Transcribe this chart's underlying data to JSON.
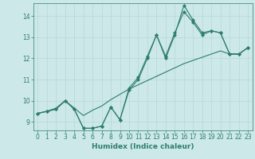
{
  "xlabel": "Humidex (Indice chaleur)",
  "x": [
    0,
    1,
    2,
    3,
    4,
    5,
    6,
    7,
    8,
    9,
    10,
    11,
    12,
    13,
    14,
    15,
    16,
    17,
    18,
    19,
    20,
    21,
    22,
    23
  ],
  "line1": [
    9.4,
    9.5,
    9.6,
    10.0,
    9.6,
    8.7,
    8.7,
    8.8,
    9.7,
    9.1,
    10.5,
    11.0,
    12.0,
    13.1,
    12.0,
    13.1,
    14.5,
    13.8,
    13.2,
    13.3,
    13.2,
    12.2,
    12.2,
    12.5
  ],
  "line2": [
    9.4,
    9.5,
    9.6,
    10.0,
    9.6,
    8.7,
    8.7,
    8.8,
    9.7,
    9.1,
    10.6,
    11.1,
    12.1,
    13.1,
    12.1,
    13.2,
    14.2,
    13.7,
    13.1,
    13.3,
    13.2,
    12.2,
    12.2,
    12.5
  ],
  "line3": [
    9.4,
    9.5,
    9.65,
    10.0,
    9.65,
    9.3,
    9.55,
    9.75,
    10.05,
    10.3,
    10.55,
    10.75,
    10.95,
    11.15,
    11.35,
    11.55,
    11.75,
    11.9,
    12.05,
    12.2,
    12.35,
    12.2,
    12.2,
    12.5
  ],
  "color": "#2e7d70",
  "bg_color": "#cce8e8",
  "grid_color": "#b8d8d8",
  "ylim": [
    8.6,
    14.6
  ],
  "yticks": [
    9,
    10,
    11,
    12,
    13,
    14
  ],
  "xticks": [
    0,
    1,
    2,
    3,
    4,
    5,
    6,
    7,
    8,
    9,
    10,
    11,
    12,
    13,
    14,
    15,
    16,
    17,
    18,
    19,
    20,
    21,
    22,
    23
  ],
  "tick_fontsize": 5.5,
  "xlabel_fontsize": 6.5,
  "linewidth": 0.8,
  "markersize": 2.2
}
